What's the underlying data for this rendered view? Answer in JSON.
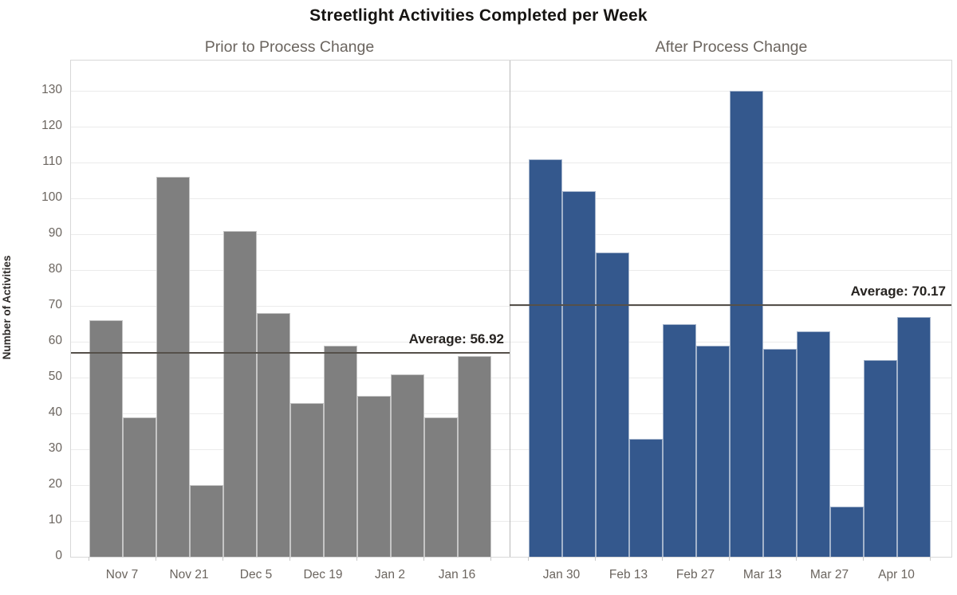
{
  "chart_data": {
    "type": "bar",
    "title": "Streetlight Activities Completed per Week",
    "ylabel": "Number of Activities",
    "xlabel": "",
    "ylim": [
      0,
      130
    ],
    "y_ticks": [
      0,
      10,
      20,
      30,
      40,
      50,
      60,
      70,
      80,
      90,
      100,
      110,
      120,
      130
    ],
    "grid": "horizontal",
    "legend": "none",
    "panels": [
      {
        "title": "Prior to Process Change",
        "bar_color": "#7f7f7f",
        "values": [
          66,
          39,
          106,
          20,
          91,
          68,
          43,
          59,
          45,
          51,
          39,
          56
        ],
        "x_tick_labels": [
          "Nov 7",
          "Nov 21",
          "Dec 5",
          "Dec 19",
          "Jan 2",
          "Jan 16"
        ],
        "average": 56.92,
        "average_label": "Average: 56.92"
      },
      {
        "title": "After Process Change",
        "bar_color": "#34588d",
        "values": [
          111,
          102,
          85,
          33,
          65,
          59,
          130,
          58,
          63,
          14,
          55,
          67
        ],
        "x_tick_labels": [
          "Jan 30",
          "Feb 13",
          "Feb 27",
          "Mar 13",
          "Mar 27",
          "Apr 10"
        ],
        "average": 70.17,
        "average_label": "Average: 70.17"
      }
    ],
    "average_line_color": "#55504a"
  }
}
